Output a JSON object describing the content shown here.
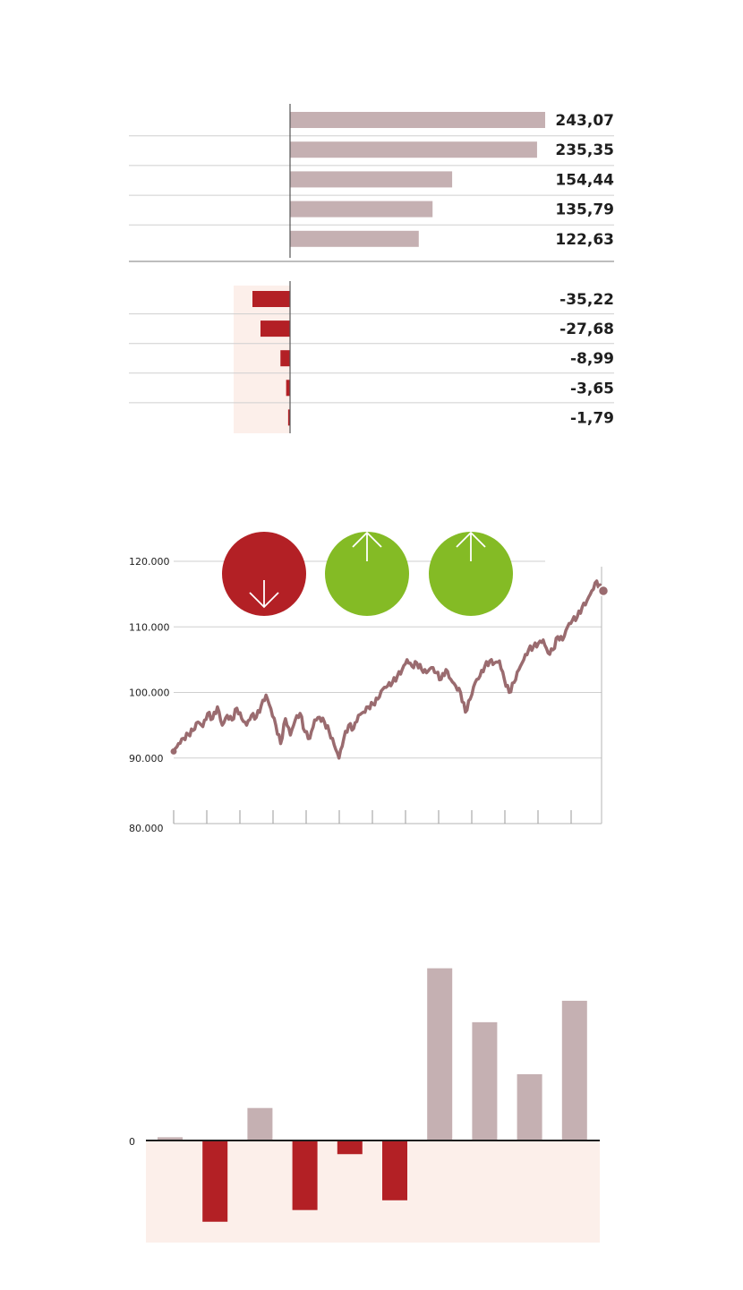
{
  "colors": {
    "positive": "#c5b0b2",
    "negative": "#b32025",
    "negative_bg": "#fcefea",
    "line": "#9a6b6f",
    "gridline": "#cfcfcf",
    "axis": "#555555",
    "up_circle": "#84bb25",
    "down_circle": "#b32025"
  },
  "chart_data": [
    {
      "type": "bar",
      "orientation": "horizontal",
      "group": "top",
      "values": [
        243.07,
        235.35,
        154.44,
        135.79,
        122.63
      ],
      "value_labels": [
        "243,07",
        "235,35",
        "154,44",
        "135,79",
        "122,63"
      ],
      "xlim": [
        0,
        243.07
      ]
    },
    {
      "type": "bar",
      "orientation": "horizontal",
      "group": "bottom",
      "values": [
        -35.22,
        -27.68,
        -8.99,
        -3.65,
        -1.79
      ],
      "value_labels": [
        "-35,22",
        "-27,68",
        "-8,99",
        "-3,65",
        "-1,79"
      ],
      "xlim": [
        -35.22,
        0
      ]
    },
    {
      "type": "line",
      "yticks": [
        120000,
        110000,
        100000,
        90000,
        80000
      ],
      "ytick_labels": [
        "120.000",
        "110.000",
        "100.000",
        "90.000",
        "80.000"
      ],
      "ylim": [
        80000,
        120000
      ],
      "x_tick_count": 13,
      "start_value": 91000,
      "end_value": 115500,
      "values": [
        91000,
        92200,
        93000,
        93600,
        94200,
        95500,
        94800,
        96800,
        96000,
        97800,
        95000,
        96500,
        95800,
        97600,
        96000,
        95000,
        96500,
        96200,
        98000,
        99600,
        97500,
        95000,
        92200,
        96000,
        93500,
        95800,
        96800,
        94000,
        93000,
        95800,
        96200,
        95500,
        94000,
        92000,
        90000,
        93000,
        95000,
        94500,
        96500,
        97000,
        97800,
        98200,
        99000,
        100500,
        101000,
        101500,
        102500,
        103500,
        105000,
        104000,
        104500,
        103500,
        103000,
        103800,
        103000,
        102000,
        103500,
        102000,
        101000,
        100000,
        97000,
        99000,
        101500,
        102500,
        104000,
        104800,
        104500,
        104800,
        102000,
        100000,
        101500,
        103500,
        105000,
        106500,
        107000,
        107500,
        108000,
        106000,
        106500,
        108500,
        108000,
        110000,
        111000,
        111500,
        113000,
        114000,
        115500,
        117000,
        115500
      ],
      "markers": [
        {
          "type": "down",
          "index": 16
        },
        {
          "type": "up",
          "index": 35
        },
        {
          "type": "up",
          "index": 53
        }
      ]
    },
    {
      "type": "bar",
      "orientation": "vertical",
      "ytick_labels": [
        "0"
      ],
      "values": [
        0.5,
        -12.5,
        5,
        -10.7,
        -2.1,
        -9.2,
        26.5,
        18.2,
        10.2,
        21.5
      ]
    }
  ]
}
